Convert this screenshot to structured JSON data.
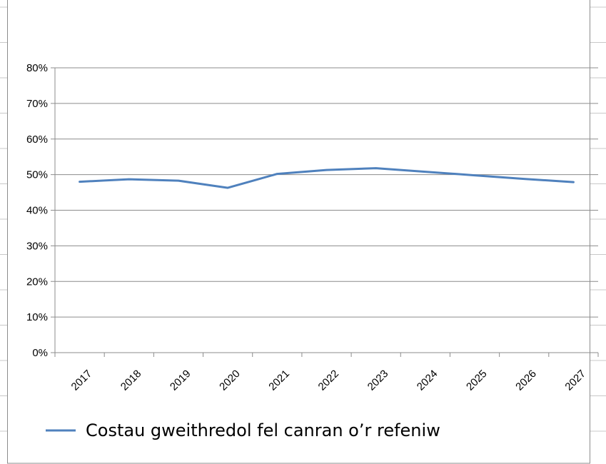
{
  "chart_data": {
    "type": "line",
    "x": [
      "2017",
      "2018",
      "2019",
      "2020",
      "2021",
      "2022",
      "2023",
      "2024",
      "2025",
      "2026",
      "2027"
    ],
    "series": [
      {
        "name": "Costau gweithredol fel canran o’r refeniw",
        "values": [
          48,
          48.7,
          48.3,
          46.3,
          50.2,
          51.3,
          51.8,
          50.8,
          49.8,
          48.8,
          47.9
        ],
        "color": "#4f81bd"
      }
    ],
    "y_ticks": [
      "0%",
      "10%",
      "20%",
      "30%",
      "40%",
      "50%",
      "60%",
      "70%",
      "80%"
    ],
    "ylim": [
      0,
      80
    ],
    "grid": true,
    "legend_position": "bottom-left",
    "title": "",
    "xlabel": "",
    "ylabel": ""
  }
}
